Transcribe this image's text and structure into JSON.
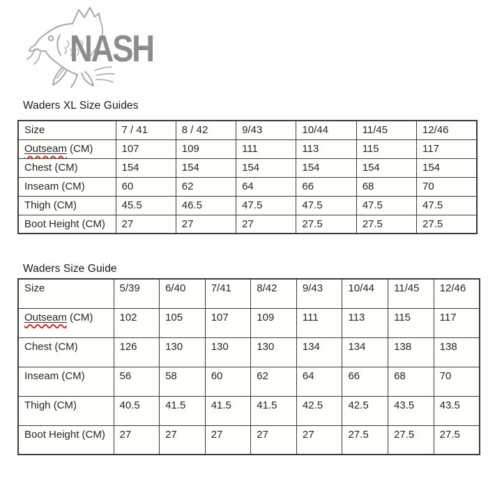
{
  "logo": {
    "brand": "NASH",
    "icon": "carp-fish-line-art",
    "brand_color": "#8c8c8c",
    "sketch_color": "#a8a8a8"
  },
  "page": {
    "background": "#fefefe",
    "border_color": "#3b3b3b",
    "squiggle_color": "#cf2a20"
  },
  "tables": [
    {
      "title": "Waders XL Size Guides",
      "columns": [
        "Size",
        "7 / 41",
        "8 / 42",
        "9/43",
        "10/44",
        "11/45",
        "12/46"
      ],
      "rows": [
        {
          "label": "Outseam (CM)",
          "misspelled": "Outseam",
          "values": [
            "107",
            "109",
            "111",
            "113",
            "115",
            "117"
          ]
        },
        {
          "label": "Chest (CM)",
          "values": [
            "154",
            "154",
            "154",
            "154",
            "154",
            "154"
          ]
        },
        {
          "label": "Inseam (CM)",
          "values": [
            "60",
            "62",
            "64",
            "66",
            "68",
            "70"
          ]
        },
        {
          "label": "Thigh (CM)",
          "values": [
            "45.5",
            "46.5",
            "47.5",
            "47.5",
            "47.5",
            "47.5"
          ]
        },
        {
          "label": "Boot Height (CM)",
          "values": [
            "27",
            "27",
            "27",
            "27.5",
            "27.5",
            "27.5"
          ]
        }
      ]
    },
    {
      "title": "Waders Size Guide",
      "columns": [
        "Size",
        "5/39",
        "6/40",
        "7/41",
        "8/42",
        "9/43",
        "10/44",
        "11/45",
        "12/46"
      ],
      "rows": [
        {
          "label": "Outseam (CM)",
          "misspelled": "Outseam",
          "values": [
            "102",
            "105",
            "107",
            "109",
            "111",
            "113",
            "115",
            "117"
          ]
        },
        {
          "label": "Chest (CM)",
          "values": [
            "126",
            "130",
            "130",
            "130",
            "134",
            "134",
            "138",
            "138"
          ]
        },
        {
          "label": "Inseam (CM)",
          "values": [
            "56",
            "58",
            "60",
            "62",
            "64",
            "66",
            "68",
            "70"
          ]
        },
        {
          "label": "Thigh (CM)",
          "values": [
            "40.5",
            "41.5",
            "41.5",
            "41.5",
            "42.5",
            "42.5",
            "43.5",
            "43.5"
          ]
        },
        {
          "label": "Boot Height (CM)",
          "values": [
            "27",
            "27",
            "27",
            "27",
            "27",
            "27.5",
            "27.5",
            "27.5"
          ]
        }
      ]
    }
  ]
}
